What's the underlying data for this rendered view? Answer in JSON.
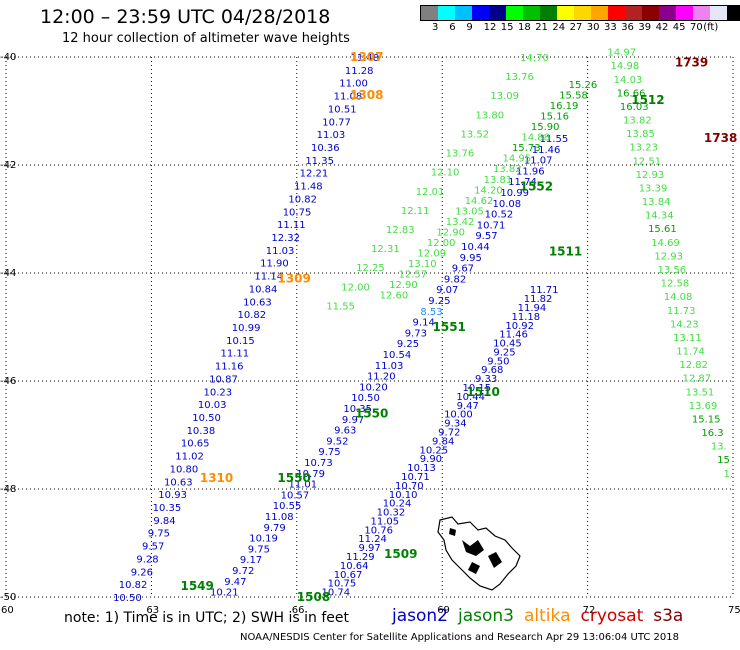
{
  "header": {
    "title": "12:00 – 23:59 UTC 04/28/2018",
    "subtitle": "12 hour collection of altimeter wave heights"
  },
  "legend": {
    "colors": [
      "#808080",
      "#00ffff",
      "#00c0ff",
      "#0000ff",
      "#00008b",
      "#00ff00",
      "#00c000",
      "#008000",
      "#ffff00",
      "#ffd700",
      "#ffa500",
      "#ff0000",
      "#b22222",
      "#8b0000",
      "#8b008b",
      "#ff00ff",
      "#ee82ee",
      "#e6e6fa",
      "#000000"
    ],
    "labels": [
      "3",
      "6",
      "9",
      "12",
      "15",
      "18",
      "21",
      "24",
      "27",
      "30",
      "33",
      "36",
      "39",
      "42",
      "45",
      "70",
      "(ft)"
    ]
  },
  "map": {
    "lat_labels": [
      "-40",
      "-42",
      "-44",
      "-46",
      "-48",
      "-50"
    ],
    "lon_labels": [
      "60",
      "63",
      "66",
      "69",
      "72",
      "75"
    ]
  },
  "passes": [
    {
      "sat": "altika",
      "label": "1307",
      "lat": -40.0,
      "lon": 67.1
    },
    {
      "sat": "altika",
      "label": "1308",
      "lat": -40.7,
      "lon": 67.1
    },
    {
      "sat": "altika",
      "label": "1309",
      "lat": -44.1,
      "lon": 65.6
    },
    {
      "sat": "altika",
      "label": "1310",
      "lat": -47.8,
      "lon": 64.0
    },
    {
      "sat": "jason3",
      "label": "1512",
      "lat": -40.8,
      "lon": 72.9
    },
    {
      "sat": "jason3",
      "label": "1511",
      "lat": -43.6,
      "lon": 71.2
    },
    {
      "sat": "jason3",
      "label": "1510",
      "lat": -46.2,
      "lon": 69.5
    },
    {
      "sat": "jason3",
      "label": "1509",
      "lat": -49.2,
      "lon": 67.8
    },
    {
      "sat": "jason3",
      "label": "1508",
      "lat": -50.0,
      "lon": 66.0
    },
    {
      "sat": "jason3",
      "label": "1552",
      "lat": -42.4,
      "lon": 70.6
    },
    {
      "sat": "jason3",
      "label": "1551",
      "lat": -45.0,
      "lon": 68.8
    },
    {
      "sat": "jason3",
      "label": "1550",
      "lat": -46.6,
      "lon": 67.2
    },
    {
      "sat": "jason3",
      "label": "1550",
      "lat": -47.8,
      "lon": 65.6
    },
    {
      "sat": "jason3",
      "label": "1549",
      "lat": -49.8,
      "lon": 63.6
    },
    {
      "sat": "cryosat",
      "label": "1739",
      "lat": -40.1,
      "lon": 73.8
    },
    {
      "sat": "cryosat",
      "label": "1738",
      "lat": -41.5,
      "lon": 74.4
    }
  ],
  "tracks": [
    {
      "sat": "jason2",
      "lon0": 67.7,
      "lat0": -40.0,
      "lon1": 62.8,
      "lat1": -50.0,
      "values": [
        "11.48",
        "11.28",
        "11.00",
        "11.08",
        "10.51",
        "10.77",
        "11.03",
        "10.36",
        "11.35",
        "12.21",
        "11.48",
        "10.82",
        "10.75",
        "11.11",
        "12.32",
        "11.03",
        "11.90",
        "11.14",
        "10.84",
        "10.63",
        "10.82",
        "10.99",
        "10.15",
        "11.11",
        "11.16",
        "10.87",
        "10.23",
        "10.03",
        "10.50",
        "10.38",
        "10.65",
        "11.02",
        "10.80",
        "10.63",
        "10.93",
        "10.35",
        "9.84",
        "9.75",
        "9.57",
        "9.28",
        "9.26",
        "10.82",
        "10.50"
      ]
    },
    {
      "sat": "jason2",
      "lon0": 71.6,
      "lat0": -41.5,
      "lon1": 64.8,
      "lat1": -49.9,
      "values": [
        "11.55",
        "11.46",
        "11.07",
        "11.96",
        "11.74",
        "10.99",
        "10.08",
        "10.52",
        "10.71",
        "9.57",
        "10.44",
        "9.95",
        "9.67",
        "9.82",
        "9.07",
        "9.25",
        "8.53",
        "9.14",
        "9.73",
        "9.25",
        "10.54",
        "11.03",
        "11.20",
        "10.20",
        "10.50",
        "10.35",
        "9.97",
        "9.63",
        "9.52",
        "9.75",
        "10.73",
        "10.79",
        "11.01",
        "10.57",
        "10.55",
        "11.08",
        "9.79",
        "10.19",
        "9.75",
        "9.17",
        "9.72",
        "9.47",
        "10.21"
      ]
    },
    {
      "sat": "jason2",
      "lon0": 71.4,
      "lat0": -44.3,
      "lon1": 67.1,
      "lat1": -49.9,
      "values": [
        "11.71",
        "11.82",
        "11.94",
        "11.18",
        "10.92",
        "11.46",
        "10.45",
        "9.25",
        "9.50",
        "9.68",
        "9.33",
        "10.15",
        "10.44",
        "9.47",
        "10.00",
        "9.34",
        "9.72",
        "9.84",
        "10.25",
        "9.90",
        "10.13",
        "10.71",
        "10.70",
        "10.10",
        "10.24",
        "10.32",
        "11.05",
        "10.76",
        "11.24",
        "9.97",
        "11.29",
        "10.64",
        "10.67",
        "10.75",
        "10.74"
      ]
    },
    {
      "sat": "jason3",
      "lon0": 71.2,
      "lat0": -40.0,
      "lon1": 67.2,
      "lat1": -44.6,
      "values": [
        "14.70",
        "13.76",
        "13.09",
        "13.80",
        "13.52",
        "13.76",
        "12.10",
        "12.01",
        "12.11",
        "12.83",
        "12.31",
        "12.25",
        "12.00",
        "11.55"
      ]
    },
    {
      "sat": "jason3",
      "lon0": 72.2,
      "lat0": -40.5,
      "lon1": 68.3,
      "lat1": -44.4,
      "values": [
        "15.26",
        "15.58",
        "16.19",
        "15.16",
        "15.90",
        "14.88",
        "15.73",
        "14.95",
        "13.82",
        "13.81",
        "14.20",
        "14.62",
        "13.05",
        "13.42",
        "12.90",
        "12.00",
        "12.09",
        "13.10",
        "12.57",
        "12.90",
        "12.60"
      ]
    },
    {
      "sat": "jason3",
      "lon0": 73.0,
      "lat0": -39.9,
      "lon1": 75.0,
      "lat1": -47.7,
      "values": [
        "14.97",
        "14.98",
        "14.03",
        "16.66",
        "16.03",
        "13.82",
        "13.85",
        "13.23",
        "12.51",
        "12.93",
        "13.39",
        "13.84",
        "14.34",
        "15.61",
        "14.69",
        "12.93",
        "13.56",
        "12.58",
        "14.08",
        "11.73",
        "14.23",
        "13.11",
        "11.74",
        "12.82",
        "12.87",
        "13.51",
        "13.69",
        "15.15",
        "16.3",
        "13.",
        "15",
        "1."
      ]
    }
  ],
  "footer": {
    "note": "note: 1) Time is in UTC; 2) SWH is in feet",
    "satellites": [
      {
        "name": "jason2",
        "color": "#0000cc"
      },
      {
        "name": "jason3",
        "color": "#008000"
      },
      {
        "name": "altika",
        "color": "#ff8c00"
      },
      {
        "name": "cryosat",
        "color": "#cc0000"
      },
      {
        "name": "s3a",
        "color": "#800000"
      }
    ],
    "credit": "NOAA/NESDIS Center for Satellite Applications and Research   Apr 29 13:06:04 UTC 2018"
  }
}
